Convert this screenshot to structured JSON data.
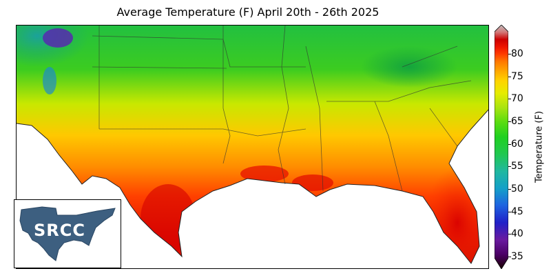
{
  "map": {
    "title": "Average Temperature (F) April 20th - 26th 2025",
    "region": "Southern United States",
    "colorbar": {
      "label": "Temperature (F)",
      "ticks": [
        "35",
        "40",
        "45",
        "50",
        "55",
        "60",
        "65",
        "70",
        "75",
        "80"
      ],
      "colors": [
        "#1a0000",
        "#4b0066",
        "#6a1aa0",
        "#2020c8",
        "#1e63e0",
        "#14a0c8",
        "#20b8a0",
        "#20c850",
        "#1fd020",
        "#58dc10",
        "#a8e410",
        "#e6ec00",
        "#ffd400",
        "#ffa800",
        "#ff7800",
        "#ff3c00",
        "#ee1400",
        "#cc0000",
        "#d27878",
        "#c0c0c0"
      ]
    },
    "logo": {
      "text": "SRCC"
    }
  }
}
